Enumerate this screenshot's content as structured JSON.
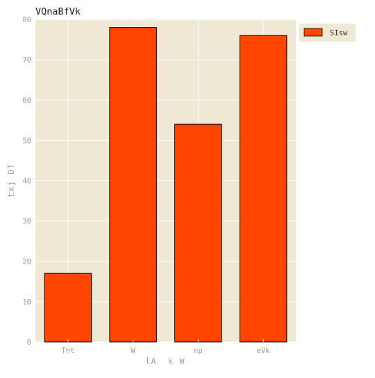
{
  "chart_data": {
    "type": "bar",
    "title": "VQnaBfVk",
    "xlabel": "lA  k W",
    "ylabel": "txj DT",
    "categories": [
      "Tht",
      "W",
      "np",
      "eVk"
    ],
    "series": [
      {
        "name": "SIsw",
        "values": [
          17,
          78,
          54,
          76
        ]
      }
    ],
    "ylim": [
      0,
      80
    ],
    "yticks": [
      0,
      10,
      20,
      30,
      40,
      50,
      60,
      70,
      80
    ],
    "grid": true,
    "legend_position": "outside-top-right",
    "colors": {
      "bar": "#ff4500",
      "bar_edge": "#000000",
      "plot_background": "#efe8d5",
      "grid": "#ffffff",
      "legend_background": "#efe8d5"
    }
  }
}
